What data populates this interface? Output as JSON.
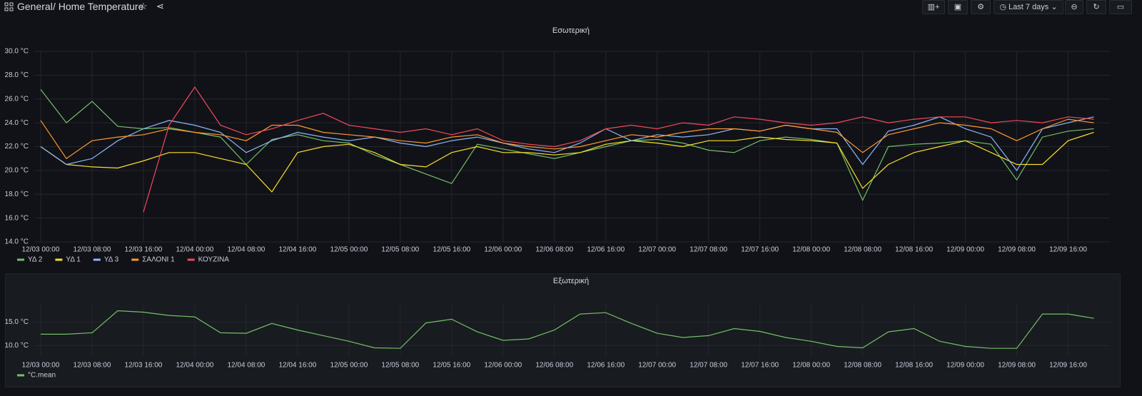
{
  "header": {
    "folder": "General",
    "dashboard": "/ Home Temperature",
    "time_range": "Last 7 days"
  },
  "chart_data": [
    {
      "type": "line",
      "title": "Εσωτερική",
      "x": [
        "12/03 00:00",
        "12/03 04:00",
        "12/03 08:00",
        "12/03 12:00",
        "12/03 16:00",
        "12/03 20:00",
        "12/04 00:00",
        "12/04 04:00",
        "12/04 08:00",
        "12/04 12:00",
        "12/04 16:00",
        "12/04 20:00",
        "12/05 00:00",
        "12/05 04:00",
        "12/05 08:00",
        "12/05 12:00",
        "12/05 16:00",
        "12/05 20:00",
        "12/06 00:00",
        "12/06 04:00",
        "12/06 08:00",
        "12/06 12:00",
        "12/06 16:00",
        "12/06 20:00",
        "12/07 00:00",
        "12/07 04:00",
        "12/07 08:00",
        "12/07 12:00",
        "12/07 16:00",
        "12/07 20:00",
        "12/08 00:00",
        "12/08 04:00",
        "12/08 08:00",
        "12/08 12:00",
        "12/08 16:00",
        "12/08 20:00",
        "12/09 00:00",
        "12/09 04:00",
        "12/09 08:00",
        "12/09 12:00",
        "12/09 16:00",
        "12/09 20:00"
      ],
      "xlim": [
        "12/02 23:00",
        "12/09 22:30"
      ],
      "xticks": [
        "12/03 00:00",
        "12/03 08:00",
        "12/03 16:00",
        "12/04 00:00",
        "12/04 08:00",
        "12/04 16:00",
        "12/05 00:00",
        "12/05 08:00",
        "12/05 16:00",
        "12/06 00:00",
        "12/06 08:00",
        "12/06 16:00",
        "12/07 00:00",
        "12/07 08:00",
        "12/07 16:00",
        "12/08 00:00",
        "12/08 08:00",
        "12/08 16:00",
        "12/09 00:00",
        "12/09 08:00",
        "12/09 16:00"
      ],
      "ylim": [
        14,
        30
      ],
      "yticks": [
        {
          "value": 14,
          "label": "14.0 °C"
        },
        {
          "value": 16,
          "label": "16.0 °C"
        },
        {
          "value": 18,
          "label": "18.0 °C"
        },
        {
          "value": 20,
          "label": "20.0 °C"
        },
        {
          "value": 22,
          "label": "22.0 °C"
        },
        {
          "value": 24,
          "label": "24.0 °C"
        },
        {
          "value": 26,
          "label": "26.0 °C"
        },
        {
          "value": 28,
          "label": "28.0 °C"
        },
        {
          "value": 30,
          "label": "30.0 °C"
        }
      ],
      "grid": true,
      "series": [
        {
          "name": "ΥΔ 2",
          "color": "#73bf69",
          "values": [
            26.8,
            24.0,
            25.8,
            23.7,
            23.5,
            23.6,
            23.2,
            22.8,
            20.5,
            22.6,
            23.0,
            22.5,
            22.3,
            21.3,
            20.5,
            19.7,
            18.9,
            22.2,
            21.8,
            21.4,
            21.0,
            21.5,
            22.0,
            22.5,
            22.6,
            22.3,
            21.7,
            21.5,
            22.5,
            22.8,
            22.6,
            22.3,
            17.5,
            22.0,
            22.2,
            22.3,
            22.5,
            22.2,
            19.2,
            22.8,
            23.3,
            23.5
          ]
        },
        {
          "name": "ΥΔ 1",
          "color": "#fade2a",
          "values": [
            22.0,
            20.5,
            20.3,
            20.2,
            20.8,
            21.5,
            21.5,
            21.0,
            20.5,
            18.2,
            21.5,
            22.0,
            22.2,
            21.5,
            20.5,
            20.3,
            21.5,
            22.0,
            21.5,
            21.5,
            21.3,
            21.5,
            22.2,
            22.5,
            22.3,
            22.0,
            22.5,
            22.5,
            22.8,
            22.6,
            22.5,
            22.3,
            18.5,
            20.5,
            21.5,
            22.0,
            22.5,
            21.5,
            20.5,
            20.5,
            22.5,
            23.2
          ]
        },
        {
          "name": "ΥΔ 3",
          "color": "#8ab8ff",
          "values": [
            22.0,
            20.5,
            21.0,
            22.5,
            23.5,
            24.2,
            23.8,
            23.2,
            21.5,
            22.5,
            23.2,
            22.8,
            22.5,
            22.8,
            22.3,
            22.0,
            22.5,
            22.8,
            22.3,
            21.8,
            21.5,
            22.3,
            23.5,
            22.5,
            23.0,
            22.8,
            23.0,
            23.5,
            23.3,
            23.8,
            23.5,
            23.5,
            20.5,
            23.3,
            23.8,
            24.5,
            23.5,
            22.8,
            20.0,
            23.5,
            24.0,
            24.5
          ]
        },
        {
          "name": "ΣΑΛΟΝΙ 1",
          "color": "#ff9830",
          "values": [
            24.2,
            21.0,
            22.5,
            22.8,
            23.0,
            23.5,
            23.2,
            23.0,
            22.5,
            23.8,
            23.8,
            23.2,
            23.0,
            22.8,
            22.5,
            22.3,
            22.8,
            23.0,
            22.3,
            22.0,
            21.8,
            22.0,
            22.5,
            23.0,
            22.8,
            23.2,
            23.5,
            23.5,
            23.3,
            23.8,
            23.5,
            23.2,
            21.5,
            23.0,
            23.5,
            24.0,
            23.8,
            23.5,
            22.5,
            23.5,
            24.3,
            24.0
          ]
        },
        {
          "name": "ΚΟΥΖΙΝΑ",
          "color": "#f2495c",
          "values": [
            null,
            null,
            null,
            null,
            16.5,
            23.8,
            27.0,
            23.8,
            23.0,
            23.5,
            24.2,
            24.8,
            23.8,
            23.5,
            23.2,
            23.5,
            23.0,
            23.5,
            22.5,
            22.2,
            22.0,
            22.5,
            23.5,
            23.8,
            23.5,
            24.0,
            23.8,
            24.5,
            24.3,
            24.0,
            23.8,
            24.0,
            24.5,
            24.0,
            24.3,
            24.5,
            24.5,
            24.0,
            24.2,
            24.0,
            24.5,
            24.3
          ]
        }
      ]
    },
    {
      "type": "line",
      "title": "Εξωτερική",
      "x": [
        "12/03 00:00",
        "12/03 04:00",
        "12/03 08:00",
        "12/03 12:00",
        "12/03 16:00",
        "12/03 20:00",
        "12/04 00:00",
        "12/04 04:00",
        "12/04 08:00",
        "12/04 12:00",
        "12/04 16:00",
        "12/04 20:00",
        "12/05 00:00",
        "12/05 04:00",
        "12/05 08:00",
        "12/05 12:00",
        "12/05 16:00",
        "12/05 20:00",
        "12/06 00:00",
        "12/06 04:00",
        "12/06 08:00",
        "12/06 12:00",
        "12/06 16:00",
        "12/06 20:00",
        "12/07 00:00",
        "12/07 04:00",
        "12/07 08:00",
        "12/07 12:00",
        "12/07 16:00",
        "12/07 20:00",
        "12/08 00:00",
        "12/08 04:00",
        "12/08 08:00",
        "12/08 12:00",
        "12/08 16:00",
        "12/08 20:00",
        "12/09 00:00",
        "12/09 04:00",
        "12/09 08:00",
        "12/09 12:00",
        "12/09 16:00",
        "12/09 20:00"
      ],
      "xlim": [
        "12/02 23:00",
        "12/09 22:30"
      ],
      "xticks": [
        "12/03 00:00",
        "12/03 08:00",
        "12/03 16:00",
        "12/04 00:00",
        "12/04 08:00",
        "12/04 16:00",
        "12/05 00:00",
        "12/05 08:00",
        "12/05 16:00",
        "12/06 00:00",
        "12/06 08:00",
        "12/06 16:00",
        "12/07 00:00",
        "12/07 08:00",
        "12/07 16:00",
        "12/08 00:00",
        "12/08 08:00",
        "12/08 16:00",
        "12/09 00:00",
        "12/09 08:00",
        "12/09 16:00"
      ],
      "ylim": [
        7.6,
        19
      ],
      "yticks": [
        {
          "value": 10,
          "label": "10.0 °C"
        },
        {
          "value": 15,
          "label": "15.0 °C"
        }
      ],
      "grid": true,
      "series": [
        {
          "name": "°C.mean",
          "color": "#73bf69",
          "values": [
            12.4,
            12.4,
            12.7,
            17.4,
            17.1,
            16.4,
            16.1,
            12.7,
            12.6,
            14.7,
            13.3,
            12.1,
            10.9,
            9.5,
            9.4,
            14.8,
            15.6,
            12.9,
            11.1,
            11.4,
            13.3,
            16.7,
            17.0,
            14.7,
            12.6,
            11.7,
            12.1,
            13.6,
            13.0,
            11.7,
            10.9,
            9.8,
            9.5,
            12.9,
            13.6,
            10.9,
            9.8,
            9.4,
            9.4,
            16.7,
            16.7,
            15.8
          ]
        }
      ]
    }
  ]
}
